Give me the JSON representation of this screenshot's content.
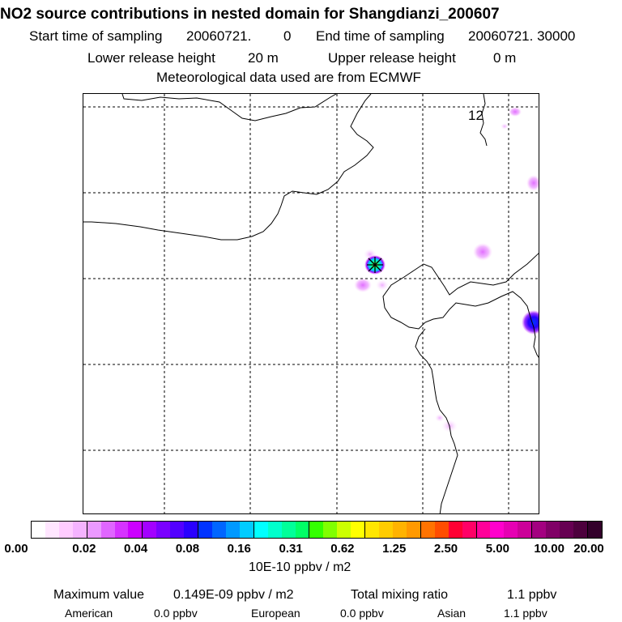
{
  "title": "NO2 source contributions in nested domain for Shangdianzi_200607",
  "sampling": {
    "start_label": "Start time of sampling",
    "start_value": "20060721.",
    "start_time": "0",
    "end_label": "End time of sampling",
    "end_value": "20060721. 30000"
  },
  "release": {
    "lower_label": "Lower release height",
    "lower_value": "20 m",
    "upper_label": "Upper release height",
    "upper_value": "0 m"
  },
  "met_line": "Meteorological data used are from ECMWF",
  "map": {
    "contour_label": "12",
    "station_marker": "receptor",
    "hotspots": [
      {
        "lon_frac": 0.955,
        "lat_frac": 0.04,
        "value": 0.02
      },
      {
        "lon_frac": 0.935,
        "lat_frac": 0.08,
        "value": 0.005
      },
      {
        "lon_frac": 0.99,
        "lat_frac": 0.215,
        "value": 0.02
      },
      {
        "lon_frac": 0.875,
        "lat_frac": 0.375,
        "value": 0.03
      },
      {
        "lon_frac": 0.63,
        "lat_frac": 0.38,
        "value": 0.01
      },
      {
        "lon_frac": 0.64,
        "lat_frac": 0.405,
        "value": 0.5
      },
      {
        "lon_frac": 0.615,
        "lat_frac": 0.455,
        "value": 0.03
      },
      {
        "lon_frac": 0.665,
        "lat_frac": 0.455,
        "value": 0.005
      },
      {
        "lon_frac": 0.985,
        "lat_frac": 0.545,
        "value": 0.08
      },
      {
        "lon_frac": 0.81,
        "lat_frac": 0.77,
        "value": 0.005
      },
      {
        "lon_frac": 0.79,
        "lat_frac": 0.755,
        "value": 0.005
      }
    ]
  },
  "colorbar": {
    "colors": [
      "#ffffff",
      "#ffe6ff",
      "#ffccff",
      "#f5b3ff",
      "#eb99ff",
      "#e066ff",
      "#d633ff",
      "#cc00ff",
      "#a300ff",
      "#7a00ff",
      "#5200ff",
      "#2900ff",
      "#0033ff",
      "#0066ff",
      "#0099ff",
      "#00ccff",
      "#00ffff",
      "#00ffcc",
      "#00ff99",
      "#00ff66",
      "#33ff00",
      "#80ff00",
      "#ccff00",
      "#ffff00",
      "#ffe600",
      "#ffcc00",
      "#ffb300",
      "#ff9900",
      "#ff7300",
      "#ff4d00",
      "#ff0033",
      "#ff0066",
      "#ff0099",
      "#ff00cc",
      "#e600b3",
      "#cc0099",
      "#a30080",
      "#800066",
      "#660052",
      "#4d003d",
      "#33002b"
    ],
    "ticks": [
      "0.00",
      "0.02",
      "0.04",
      "0.08",
      "0.16",
      "0.31",
      "0.62",
      "1.25",
      "2.50",
      "5.00",
      "10.00",
      "20.00"
    ],
    "units": "10E-10 ppbv / m2"
  },
  "stats": {
    "max_label": "Maximum value",
    "max_value": "0.149E-09 ppbv / m2",
    "total_label": "Total mixing ratio",
    "total_value": "1.1 ppbv",
    "regions": [
      {
        "name": "American",
        "value": "0.0 ppbv"
      },
      {
        "name": "European",
        "value": "0.0 ppbv"
      },
      {
        "name": "Asian",
        "value": "1.1 ppbv"
      }
    ]
  }
}
